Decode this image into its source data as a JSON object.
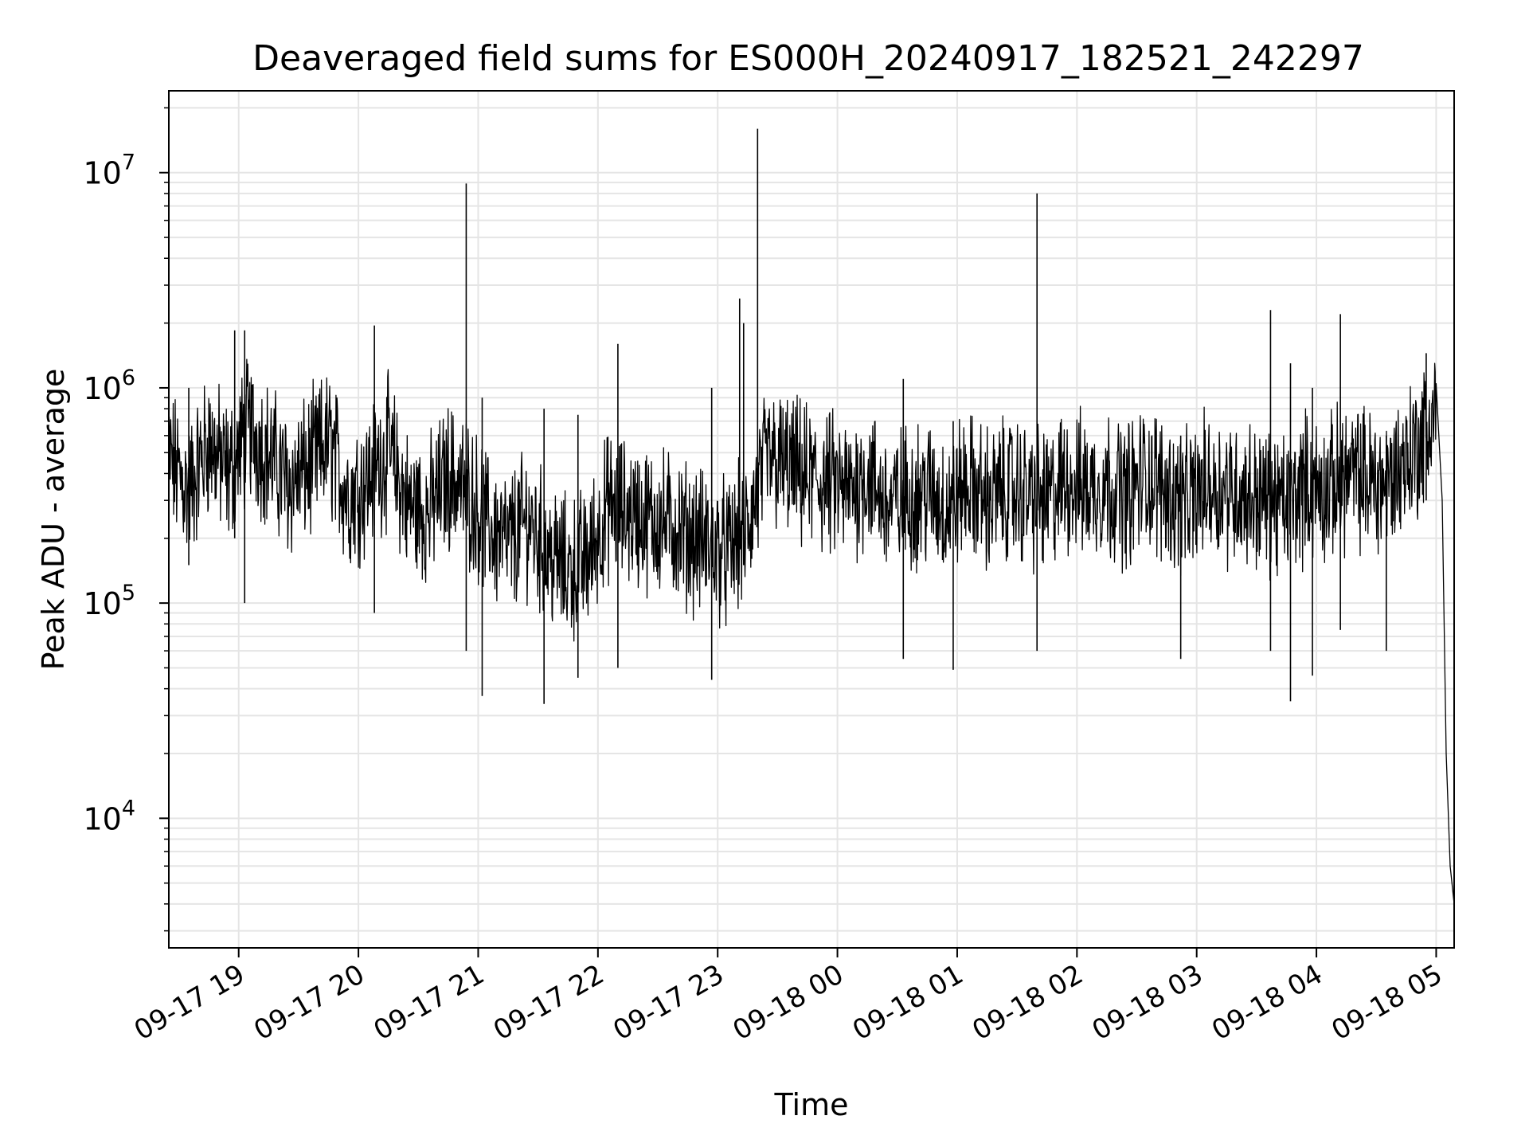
{
  "chart_data": {
    "type": "line",
    "title": "Deaveraged field sums for ES000H_20240917_182521_242297",
    "xlabel": "Time",
    "ylabel": "Peak ADU - average",
    "yscale": "log",
    "xlim": [
      "2024-09-17 18:25",
      "2024-09-18 05:09"
    ],
    "ylim": [
      2500,
      24000000
    ],
    "grid": true,
    "grid_minor": true,
    "line_color": "#000000",
    "grid_color": "#e5e5e5",
    "xticks": [
      {
        "value": "2024-09-17 19:00",
        "label": "09-17 19"
      },
      {
        "value": "2024-09-17 20:00",
        "label": "09-17 20"
      },
      {
        "value": "2024-09-17 21:00",
        "label": "09-17 21"
      },
      {
        "value": "2024-09-17 22:00",
        "label": "09-17 22"
      },
      {
        "value": "2024-09-17 23:00",
        "label": "09-17 23"
      },
      {
        "value": "2024-09-18 00:00",
        "label": "09-18 00"
      },
      {
        "value": "2024-09-18 01:00",
        "label": "09-18 01"
      },
      {
        "value": "2024-09-18 02:00",
        "label": "09-18 02"
      },
      {
        "value": "2024-09-18 03:00",
        "label": "09-18 03"
      },
      {
        "value": "2024-09-18 04:00",
        "label": "09-18 04"
      },
      {
        "value": "2024-09-18 05:00",
        "label": "09-18 05"
      }
    ],
    "yticks": [
      {
        "value": 10000,
        "base": "10",
        "exp": "4"
      },
      {
        "value": 100000,
        "base": "10",
        "exp": "5"
      },
      {
        "value": 1000000,
        "base": "10",
        "exp": "6"
      },
      {
        "value": 10000000,
        "base": "10",
        "exp": "7"
      }
    ],
    "series": [
      {
        "x": [
          "2024-09-17 18:25",
          "2024-09-17 18:35",
          "2024-09-17 18:45",
          "2024-09-17 18:55",
          "2024-09-17 19:05",
          "2024-09-17 19:15",
          "2024-09-17 19:25",
          "2024-09-17 19:35",
          "2024-09-17 19:45",
          "2024-09-17 19:55",
          "2024-09-17 20:05",
          "2024-09-17 20:15",
          "2024-09-17 20:25",
          "2024-09-17 20:35",
          "2024-09-17 20:45",
          "2024-09-17 20:55",
          "2024-09-17 21:05",
          "2024-09-17 21:15",
          "2024-09-17 21:25",
          "2024-09-17 21:35",
          "2024-09-17 21:45",
          "2024-09-17 21:55",
          "2024-09-17 22:05",
          "2024-09-17 22:15",
          "2024-09-17 22:25",
          "2024-09-17 22:35",
          "2024-09-17 22:45",
          "2024-09-17 22:55",
          "2024-09-17 23:05",
          "2024-09-17 23:15",
          "2024-09-17 23:25",
          "2024-09-17 23:35",
          "2024-09-17 23:45",
          "2024-09-17 23:55",
          "2024-09-18 00:05",
          "2024-09-18 00:15",
          "2024-09-18 00:25",
          "2024-09-18 00:35",
          "2024-09-18 00:45",
          "2024-09-18 00:55",
          "2024-09-18 01:05",
          "2024-09-18 01:15",
          "2024-09-18 01:25",
          "2024-09-18 01:35",
          "2024-09-18 01:45",
          "2024-09-18 01:55",
          "2024-09-18 02:05",
          "2024-09-18 02:15",
          "2024-09-18 02:25",
          "2024-09-18 02:35",
          "2024-09-18 02:45",
          "2024-09-18 02:55",
          "2024-09-18 03:05",
          "2024-09-18 03:15",
          "2024-09-18 03:25",
          "2024-09-18 03:35",
          "2024-09-18 03:45",
          "2024-09-18 03:55",
          "2024-09-18 04:05",
          "2024-09-18 04:15",
          "2024-09-18 04:25",
          "2024-09-18 04:35",
          "2024-09-18 04:45",
          "2024-09-18 04:55",
          "2024-09-18 05:00",
          "2024-09-18 05:03",
          "2024-09-18 05:05",
          "2024-09-18 05:07",
          "2024-09-18 05:09"
        ],
        "y": [
          500000,
          350000,
          600000,
          420000,
          700000,
          520000,
          380000,
          450000,
          600000,
          330000,
          400000,
          550000,
          300000,
          280000,
          420000,
          350000,
          240000,
          200000,
          260000,
          180000,
          150000,
          170000,
          300000,
          280000,
          260000,
          250000,
          220000,
          200000,
          180000,
          240000,
          500000,
          450000,
          400000,
          380000,
          350000,
          420000,
          300000,
          330000,
          350000,
          300000,
          380000,
          320000,
          360000,
          340000,
          310000,
          400000,
          360000,
          380000,
          340000,
          420000,
          350000,
          300000,
          380000,
          360000,
          340000,
          320000,
          300000,
          380000,
          350000,
          420000,
          400000,
          380000,
          500000,
          650000,
          900000,
          300000,
          20000,
          6000,
          4000
        ]
      }
    ],
    "spikes": [
      {
        "x": "2024-09-17 18:35",
        "y": 1000000,
        "min": 150000
      },
      {
        "x": "2024-09-17 18:58",
        "y": 1850000,
        "min": 200000
      },
      {
        "x": "2024-09-17 19:03",
        "y": 1850000,
        "min": 100000
      },
      {
        "x": "2024-09-17 20:08",
        "y": 1950000,
        "min": 90000
      },
      {
        "x": "2024-09-17 20:54",
        "y": 8900000,
        "min": 60000
      },
      {
        "x": "2024-09-17 21:02",
        "y": 900000,
        "min": 37000
      },
      {
        "x": "2024-09-17 21:33",
        "y": 800000,
        "min": 34000
      },
      {
        "x": "2024-09-17 21:50",
        "y": 750000,
        "min": 45000
      },
      {
        "x": "2024-09-17 22:10",
        "y": 1600000,
        "min": 50000
      },
      {
        "x": "2024-09-17 22:57",
        "y": 1000000,
        "min": 44000
      },
      {
        "x": "2024-09-17 23:11",
        "y": 2600000,
        "min": 200000
      },
      {
        "x": "2024-09-17 23:13",
        "y": 2000000,
        "min": 150000
      },
      {
        "x": "2024-09-17 23:20",
        "y": 16000000,
        "min": 250000
      },
      {
        "x": "2024-09-18 00:33",
        "y": 1100000,
        "min": 55000
      },
      {
        "x": "2024-09-18 00:58",
        "y": 700000,
        "min": 49000
      },
      {
        "x": "2024-09-18 01:40",
        "y": 8000000,
        "min": 60000
      },
      {
        "x": "2024-09-18 02:52",
        "y": 600000,
        "min": 55000
      },
      {
        "x": "2024-09-18 03:37",
        "y": 2300000,
        "min": 60000
      },
      {
        "x": "2024-09-18 03:47",
        "y": 1300000,
        "min": 35000
      },
      {
        "x": "2024-09-18 03:58",
        "y": 1000000,
        "min": 46000
      },
      {
        "x": "2024-09-18 04:12",
        "y": 2200000,
        "min": 75000
      },
      {
        "x": "2024-09-18 04:35",
        "y": 600000,
        "min": 60000
      },
      {
        "x": "2024-09-18 04:55",
        "y": 1450000,
        "min": 300000
      }
    ]
  }
}
